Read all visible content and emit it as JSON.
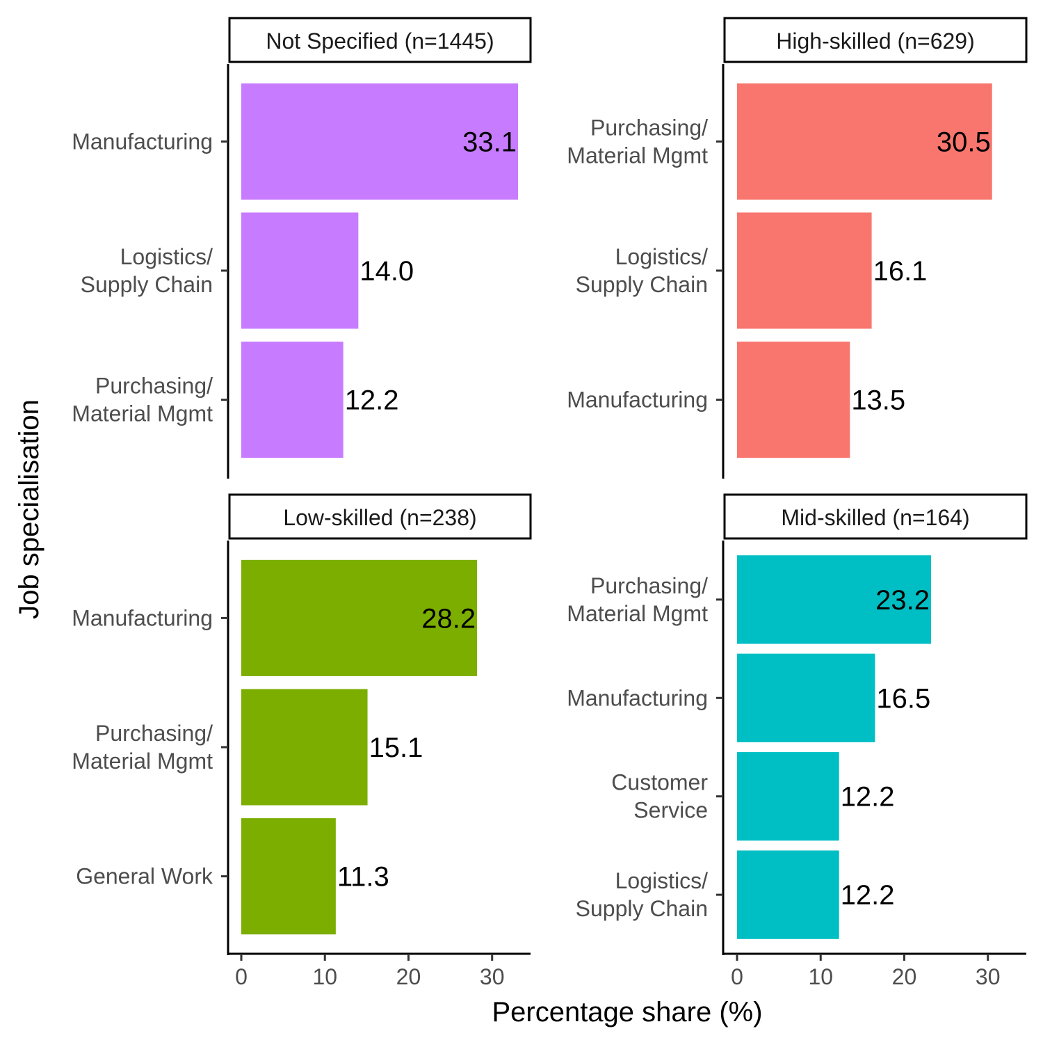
{
  "chart_data": {
    "type": "bar",
    "orientation": "horizontal",
    "xlabel": "Percentage share (%)",
    "ylabel": "Job specialisation",
    "xlim": [
      0,
      34.5
    ],
    "xticks": [
      0,
      10,
      20,
      30
    ],
    "panels": [
      {
        "title": "Not Specified (n=1445)",
        "color": "#C77CFF",
        "bars": [
          {
            "label": [
              "Manufacturing"
            ],
            "value": 33.1,
            "value_label": "33.1"
          },
          {
            "label": [
              "Logistics/",
              "Supply Chain"
            ],
            "value": 14.0,
            "value_label": "14.0"
          },
          {
            "label": [
              "Purchasing/",
              "Material Mgmt"
            ],
            "value": 12.2,
            "value_label": "12.2"
          }
        ]
      },
      {
        "title": "High-skilled (n=629)",
        "color": "#F8766D",
        "bars": [
          {
            "label": [
              "Purchasing/",
              "Material Mgmt"
            ],
            "value": 30.5,
            "value_label": "30.5"
          },
          {
            "label": [
              "Logistics/",
              "Supply Chain"
            ],
            "value": 16.1,
            "value_label": "16.1"
          },
          {
            "label": [
              "Manufacturing"
            ],
            "value": 13.5,
            "value_label": "13.5"
          }
        ]
      },
      {
        "title": "Low-skilled (n=238)",
        "color": "#7CAE00",
        "bars": [
          {
            "label": [
              "Manufacturing"
            ],
            "value": 28.2,
            "value_label": "28.2"
          },
          {
            "label": [
              "Purchasing/",
              "Material Mgmt"
            ],
            "value": 15.1,
            "value_label": "15.1"
          },
          {
            "label": [
              "General Work"
            ],
            "value": 11.3,
            "value_label": "11.3"
          }
        ]
      },
      {
        "title": "Mid-skilled (n=164)",
        "color": "#00BFC4",
        "bars": [
          {
            "label": [
              "Purchasing/",
              "Material Mgmt"
            ],
            "value": 23.2,
            "value_label": "23.2"
          },
          {
            "label": [
              "Manufacturing"
            ],
            "value": 16.5,
            "value_label": "16.5"
          },
          {
            "label": [
              "Customer",
              "Service"
            ],
            "value": 12.2,
            "value_label": "12.2"
          },
          {
            "label": [
              "Logistics/",
              "Supply Chain"
            ],
            "value": 12.2,
            "value_label": "12.2"
          }
        ]
      }
    ]
  }
}
